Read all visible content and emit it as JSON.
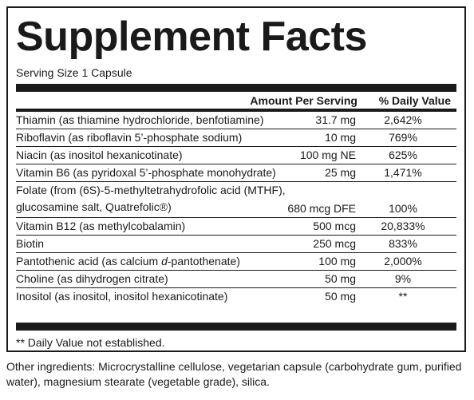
{
  "panel": {
    "title": "Supplement Facts",
    "serving_size": "Serving Size 1 Capsule",
    "header": {
      "amount": "Amount Per Serving",
      "daily_value": "% Daily Value"
    },
    "rows": [
      {
        "name": "Thiamin (as thiamine hydrochloride, benfotiamine)",
        "amount": "31.7 mg",
        "dv": "2,642%"
      },
      {
        "name": "Riboflavin (as riboflavin 5’-phosphate sodium)",
        "amount": "10 mg",
        "dv": "769%"
      },
      {
        "name": "Niacin (as inositol hexanicotinate)",
        "amount": "100 mg NE",
        "dv": "625%"
      },
      {
        "name": "Vitamin B6 (as pyridoxal 5’-phosphate monohydrate)",
        "amount": "25 mg",
        "dv": "1,471%"
      },
      {
        "name": "Folate (from (6S)-5-methyltetrahydrofolic acid (MTHF),",
        "name_line2": "glucosamine salt, Quatrefolic®)",
        "amount": "680 mcg DFE",
        "dv": "100%"
      },
      {
        "name": "Vitamin B12 (as methylcobalamin)",
        "amount": "500 mcg",
        "dv": "20,833%"
      },
      {
        "name": "Biotin",
        "amount": "250 mcg",
        "dv": "833%"
      },
      {
        "name_pre": "Pantothenic acid (as calcium ",
        "name_italic": "d",
        "name_post": "-pantothenate)",
        "amount": "100 mg",
        "dv": "2,000%"
      },
      {
        "name": "Choline (as dihydrogen citrate)",
        "amount": "50 mg",
        "dv": "9%"
      },
      {
        "name": "Inositol (as inositol, inositol hexanicotinate)",
        "amount": "50 mg",
        "dv": "**"
      }
    ],
    "footnote": "** Daily Value not established."
  },
  "other_ingredients": "Other ingredients: Microcrystalline cellulose, vegetarian capsule (carbohydrate gum, purified water), magnesium stearate (vegetable grade), silica."
}
